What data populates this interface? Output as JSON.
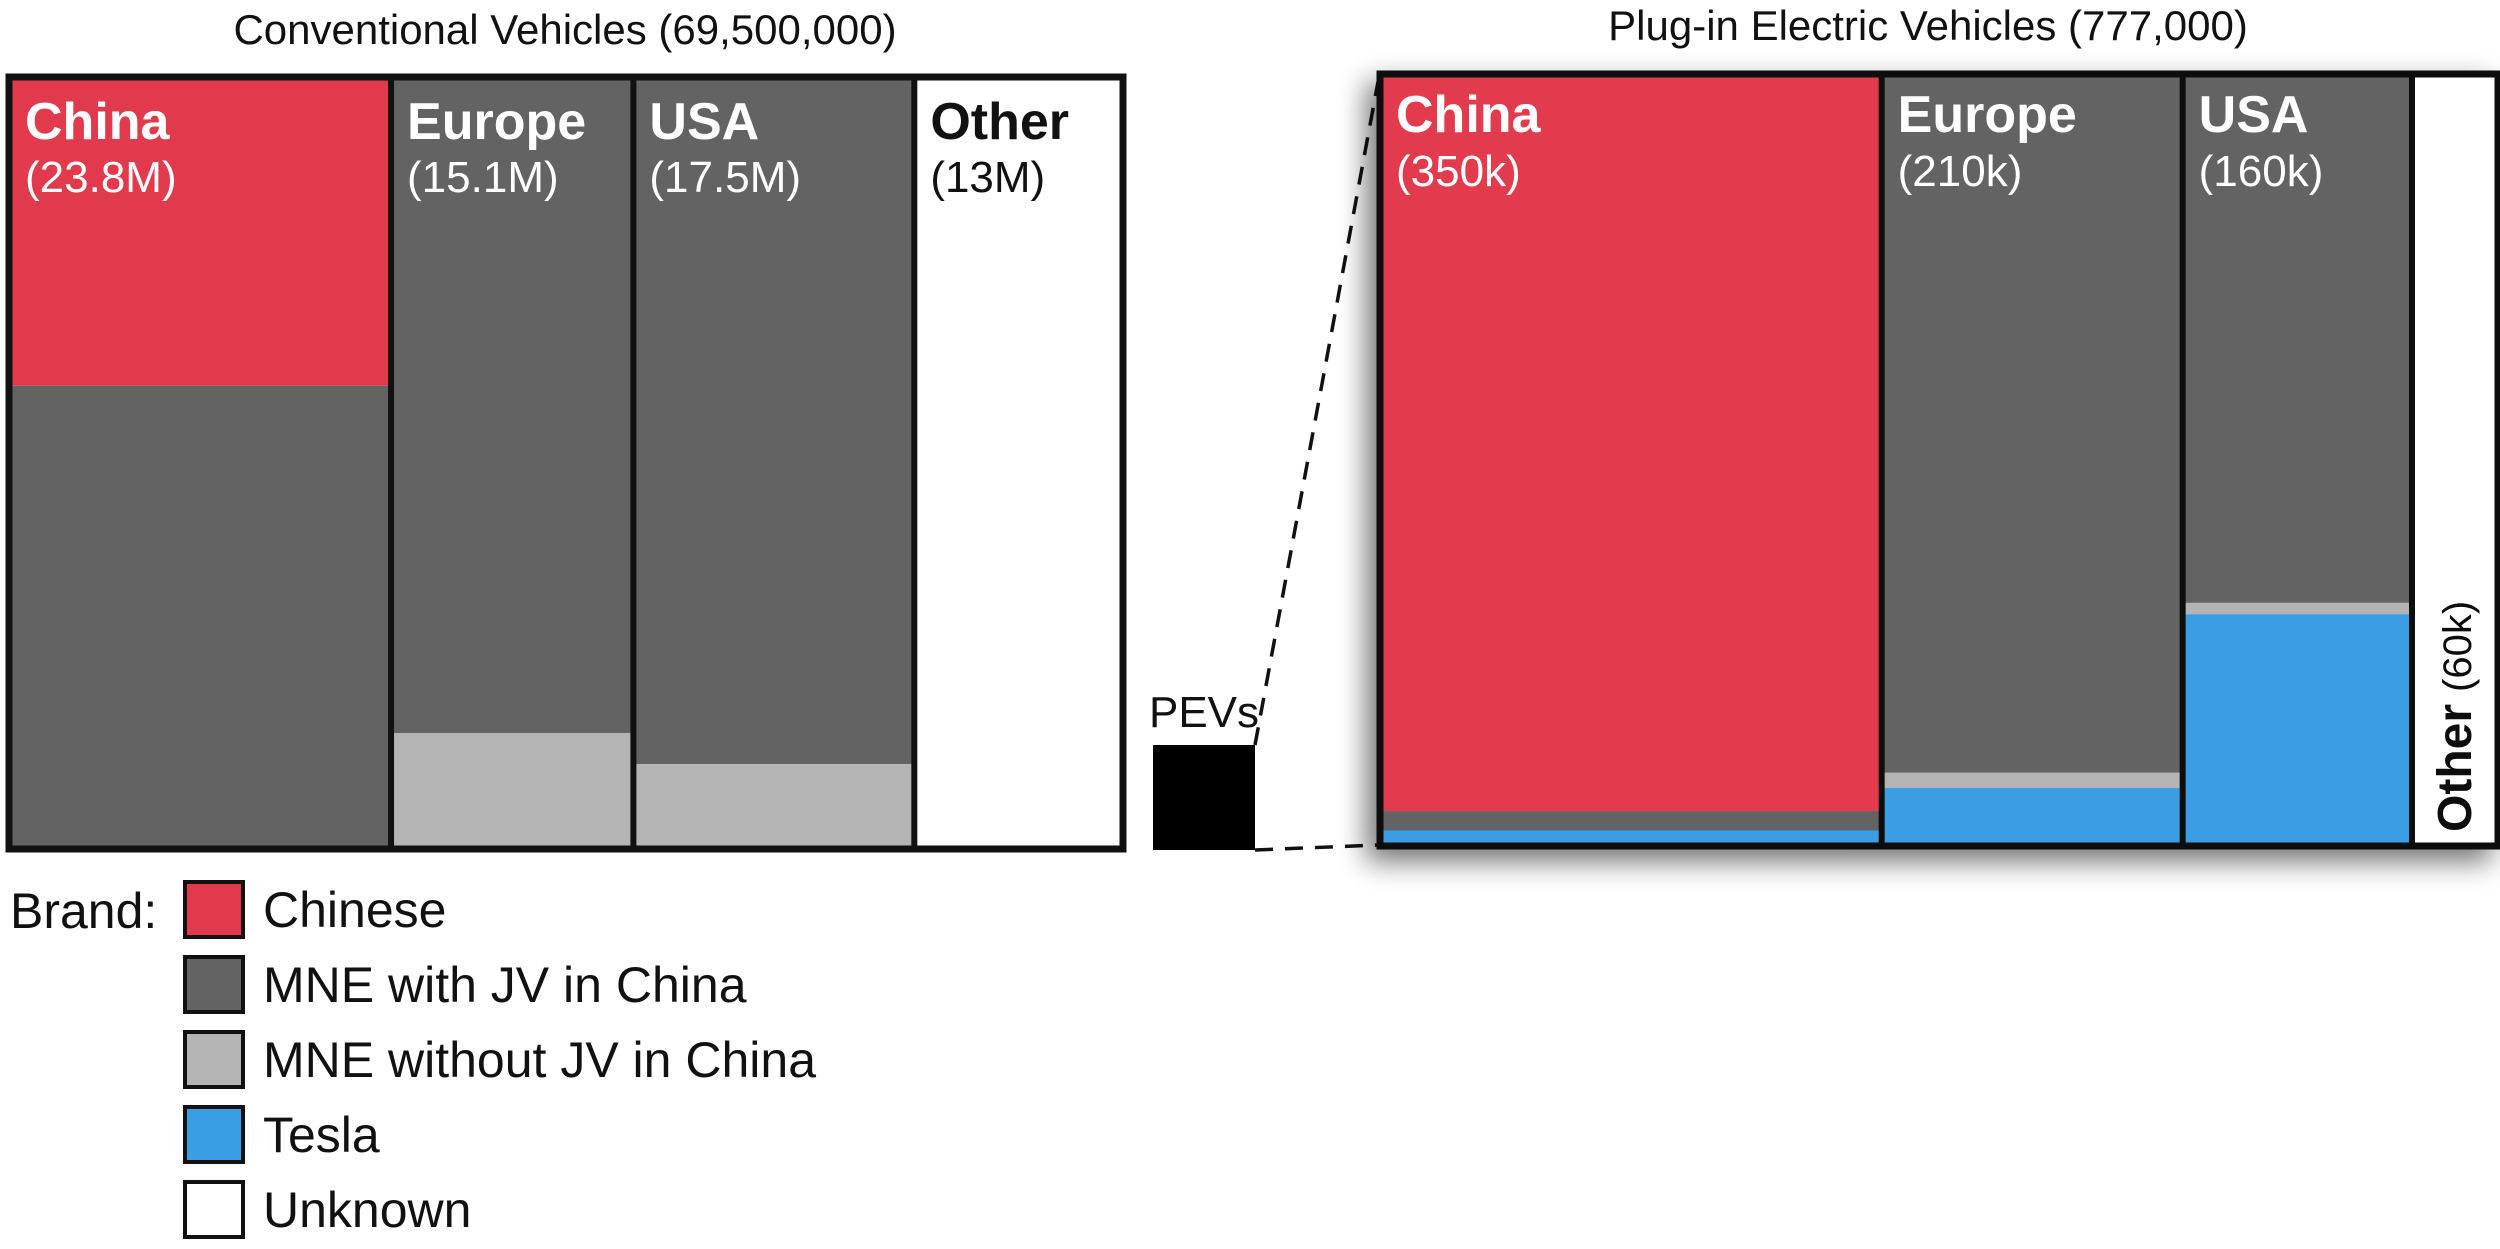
{
  "colors": {
    "chinese": "#e23a4d",
    "mne_jv": "#636363",
    "mne_no_jv": "#b4b4b4",
    "tesla": "#3a9ee4",
    "unknown": "#ffffff"
  },
  "legend": {
    "heading": "Brand:",
    "items": [
      {
        "key": "chinese",
        "label": "Chinese"
      },
      {
        "key": "mne_jv",
        "label": "MNE with JV in China"
      },
      {
        "key": "mne_no_jv",
        "label": "MNE without JV in China"
      },
      {
        "key": "tesla",
        "label": "Tesla"
      },
      {
        "key": "unknown",
        "label": "Unknown"
      }
    ]
  },
  "pev_marker_label": "PEVs",
  "chart_data": [
    {
      "type": "mekko",
      "title": "Conventional Vehicles (69,500,000)",
      "columns": [
        {
          "name": "China",
          "value_label": "(23.8M)",
          "value": 23800000,
          "segments": [
            {
              "brand": "chinese",
              "share": 0.4
            },
            {
              "brand": "mne_jv",
              "share": 0.6
            }
          ]
        },
        {
          "name": "Europe",
          "value_label": "(15.1M)",
          "value": 15100000,
          "segments": [
            {
              "brand": "mne_jv",
              "share": 0.85
            },
            {
              "brand": "mne_no_jv",
              "share": 0.15
            }
          ]
        },
        {
          "name": "USA",
          "value_label": "(17.5M)",
          "value": 17500000,
          "segments": [
            {
              "brand": "mne_jv",
              "share": 0.89
            },
            {
              "brand": "mne_no_jv",
              "share": 0.11
            }
          ]
        },
        {
          "name": "Other",
          "value_label": "(13M)",
          "value": 13000000,
          "segments": [
            {
              "brand": "unknown",
              "share": 1.0
            }
          ]
        }
      ]
    },
    {
      "type": "mekko",
      "title": "Plug-in Electric Vehicles (777,000)",
      "columns": [
        {
          "name": "China",
          "value_label": "(350k)",
          "value": 350000,
          "segments": [
            {
              "brand": "chinese",
              "share": 0.955
            },
            {
              "brand": "mne_jv",
              "share": 0.025
            },
            {
              "brand": "tesla",
              "share": 0.02
            }
          ]
        },
        {
          "name": "Europe",
          "value_label": "(210k)",
          "value": 210000,
          "segments": [
            {
              "brand": "mne_jv",
              "share": 0.905
            },
            {
              "brand": "mne_no_jv",
              "share": 0.02
            },
            {
              "brand": "tesla",
              "share": 0.075
            }
          ]
        },
        {
          "name": "USA",
          "value_label": "(160k)",
          "value": 160000,
          "segments": [
            {
              "brand": "mne_jv",
              "share": 0.685
            },
            {
              "brand": "mne_no_jv",
              "share": 0.015
            },
            {
              "brand": "tesla",
              "share": 0.3
            }
          ]
        },
        {
          "name": "Other",
          "value_label": "(60k)",
          "value": 60000,
          "segments": [
            {
              "brand": "unknown",
              "share": 1.0
            }
          ]
        }
      ]
    }
  ]
}
